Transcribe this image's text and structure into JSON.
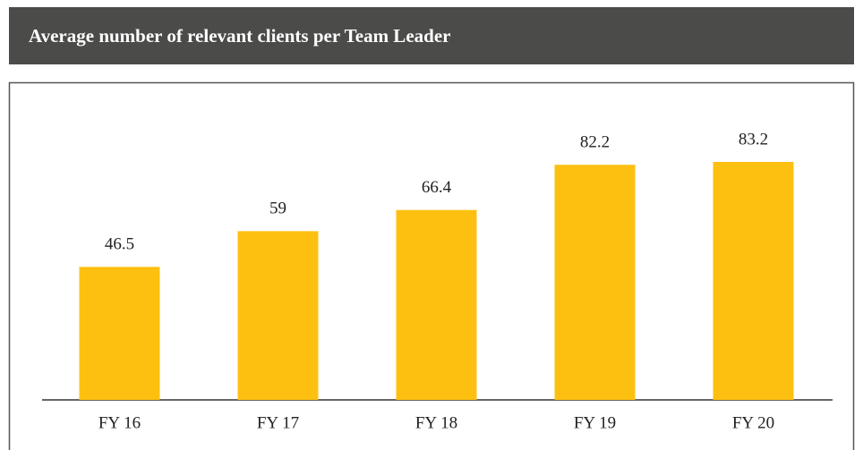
{
  "chart_data": {
    "type": "bar",
    "title": "Average number of relevant clients per Team Leader",
    "categories": [
      "FY 16",
      "FY 17",
      "FY 18",
      "FY 19",
      "FY 20"
    ],
    "values": [
      46.5,
      59,
      66.4,
      82.2,
      83.2
    ],
    "color": "#fdc010"
  }
}
